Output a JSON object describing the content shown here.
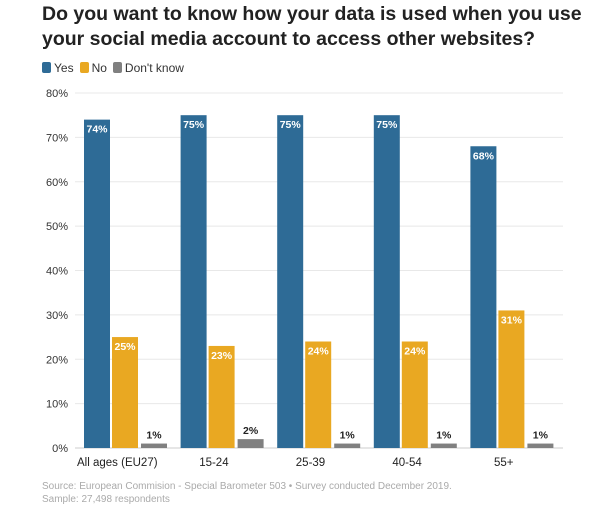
{
  "chart_data": {
    "type": "bar",
    "title": "Do you want to know how your data is used when you use your social media account to access other websites?",
    "categories": [
      "All ages (EU27)",
      "15-24",
      "25-39",
      "40-54",
      "55+"
    ],
    "series": [
      {
        "name": "Yes",
        "color": "#2e6b96",
        "values": [
          74,
          75,
          75,
          75,
          68
        ]
      },
      {
        "name": "No",
        "color": "#e9a822",
        "values": [
          25,
          23,
          24,
          24,
          31
        ]
      },
      {
        "name": "Don't know",
        "color": "#808080",
        "values": [
          1,
          2,
          1,
          1,
          1
        ]
      }
    ],
    "yticks": [
      "0%",
      "10%",
      "20%",
      "30%",
      "40%",
      "50%",
      "60%",
      "70%",
      "80%"
    ],
    "ylim": [
      0,
      80
    ],
    "grid": true,
    "legend": "top-left"
  },
  "source": "Source: European Commision - Special Barometer 503 • Survey conducted December 2019.",
  "sample": "Sample: 27,498 respondents"
}
